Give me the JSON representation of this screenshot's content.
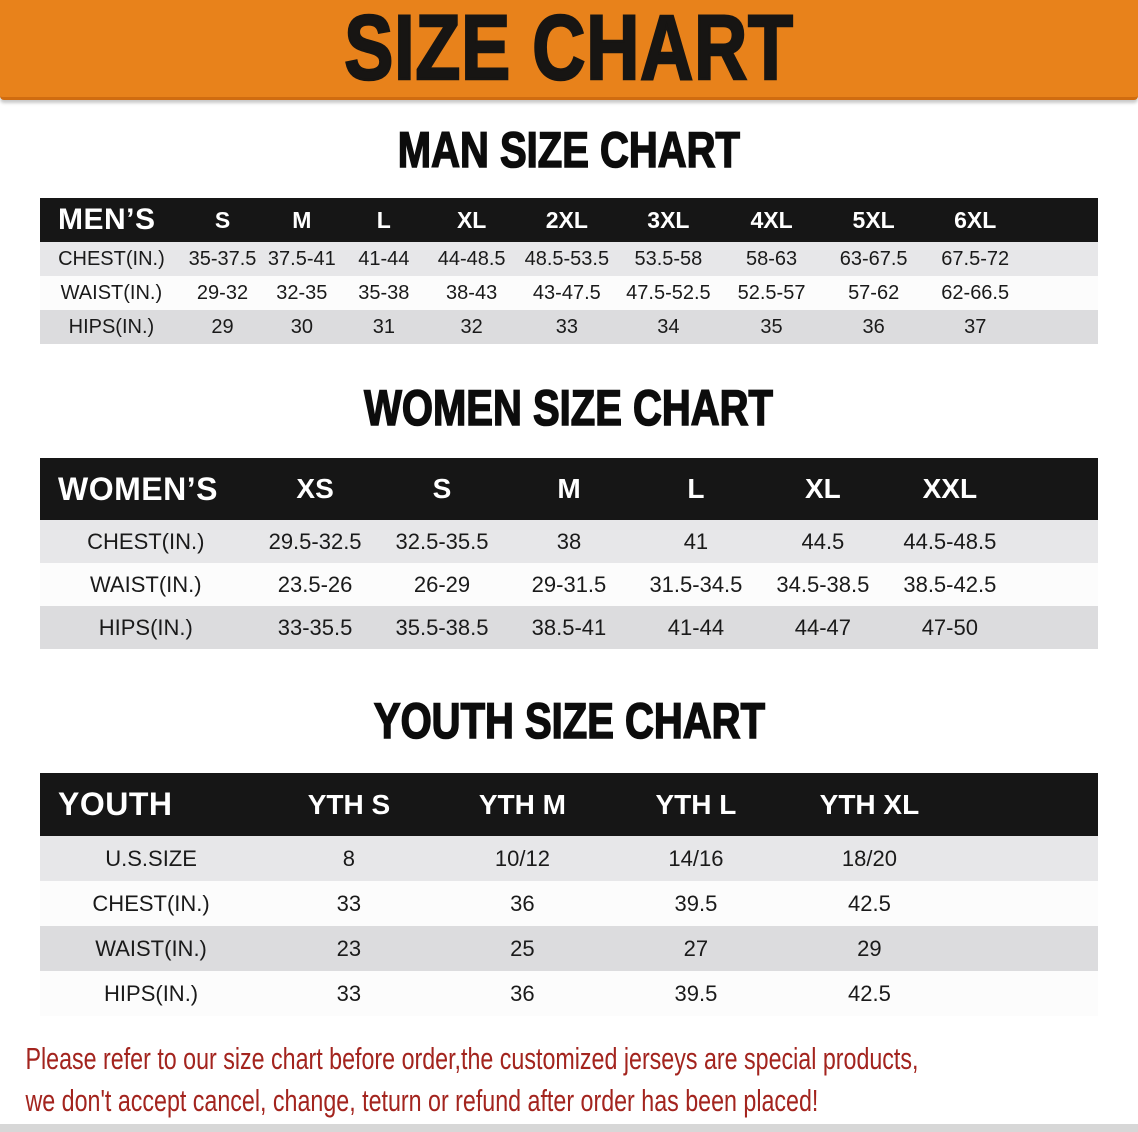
{
  "banner": {
    "title": "SIZE CHART"
  },
  "sections": [
    {
      "title": "MAN SIZE CHART",
      "header": [
        "MEN’S",
        "S",
        "M",
        "L",
        "XL",
        "2XL",
        "3XL",
        "4XL",
        "5XL",
        "6XL"
      ],
      "rows": [
        {
          "label": "CHEST(IN.)",
          "values": [
            "35-37.5",
            "37.5-41",
            "41-44",
            "44-48.5",
            "48.5-53.5",
            "53.5-58",
            "58-63",
            "63-67.5",
            "67.5-72"
          ]
        },
        {
          "label": "WAIST(IN.)",
          "values": [
            "29-32",
            "32-35",
            "35-38",
            "38-43",
            "43-47.5",
            "47.5-52.5",
            "52.5-57",
            "57-62",
            "62-66.5"
          ]
        },
        {
          "label": "HIPS(IN.)",
          "values": [
            "29",
            "30",
            "31",
            "32",
            "33",
            "34",
            "35",
            "36",
            "37"
          ]
        }
      ]
    },
    {
      "title": "WOMEN SIZE CHART",
      "header": [
        "WOMEN’S",
        "XS",
        "S",
        "M",
        "L",
        "XL",
        "XXL"
      ],
      "rows": [
        {
          "label": "CHEST(IN.)",
          "values": [
            "29.5-32.5",
            "32.5-35.5",
            "38",
            "41",
            "44.5",
            "44.5-48.5"
          ]
        },
        {
          "label": "WAIST(IN.)",
          "values": [
            "23.5-26",
            "26-29",
            "29-31.5",
            "31.5-34.5",
            "34.5-38.5",
            "38.5-42.5"
          ]
        },
        {
          "label": "HIPS(IN.)",
          "values": [
            "33-35.5",
            "35.5-38.5",
            "38.5-41",
            "41-44",
            "44-47",
            "47-50"
          ]
        }
      ]
    },
    {
      "title": "YOUTH SIZE CHART",
      "header": [
        "YOUTH",
        "YTH S",
        "YTH M",
        "YTH L",
        "YTH XL"
      ],
      "rows": [
        {
          "label": "U.S.SIZE",
          "values": [
            "8",
            "10/12",
            "14/16",
            "18/20"
          ]
        },
        {
          "label": "CHEST(IN.)",
          "values": [
            "33",
            "36",
            "39.5",
            "42.5"
          ]
        },
        {
          "label": "WAIST(IN.)",
          "values": [
            "23",
            "25",
            "27",
            "29"
          ]
        },
        {
          "label": "HIPS(IN.)",
          "values": [
            "33",
            "36",
            "39.5",
            "42.5"
          ]
        }
      ]
    }
  ],
  "disclaimer": {
    "line1": "Please refer to our size chart before order,the customized jerseys are special products,",
    "line2": "we don't accept cancel, change, teturn or refund after order has been placed!"
  },
  "colors": {
    "banner_bg": "#e8821b",
    "table_header_bg": "#161616",
    "row_light": "#e7e7e9",
    "row_white": "#fcfcfc",
    "row_gray": "#dcdcde",
    "title_text": "#0c0c0c",
    "disclaimer_text": "#a3241e"
  }
}
